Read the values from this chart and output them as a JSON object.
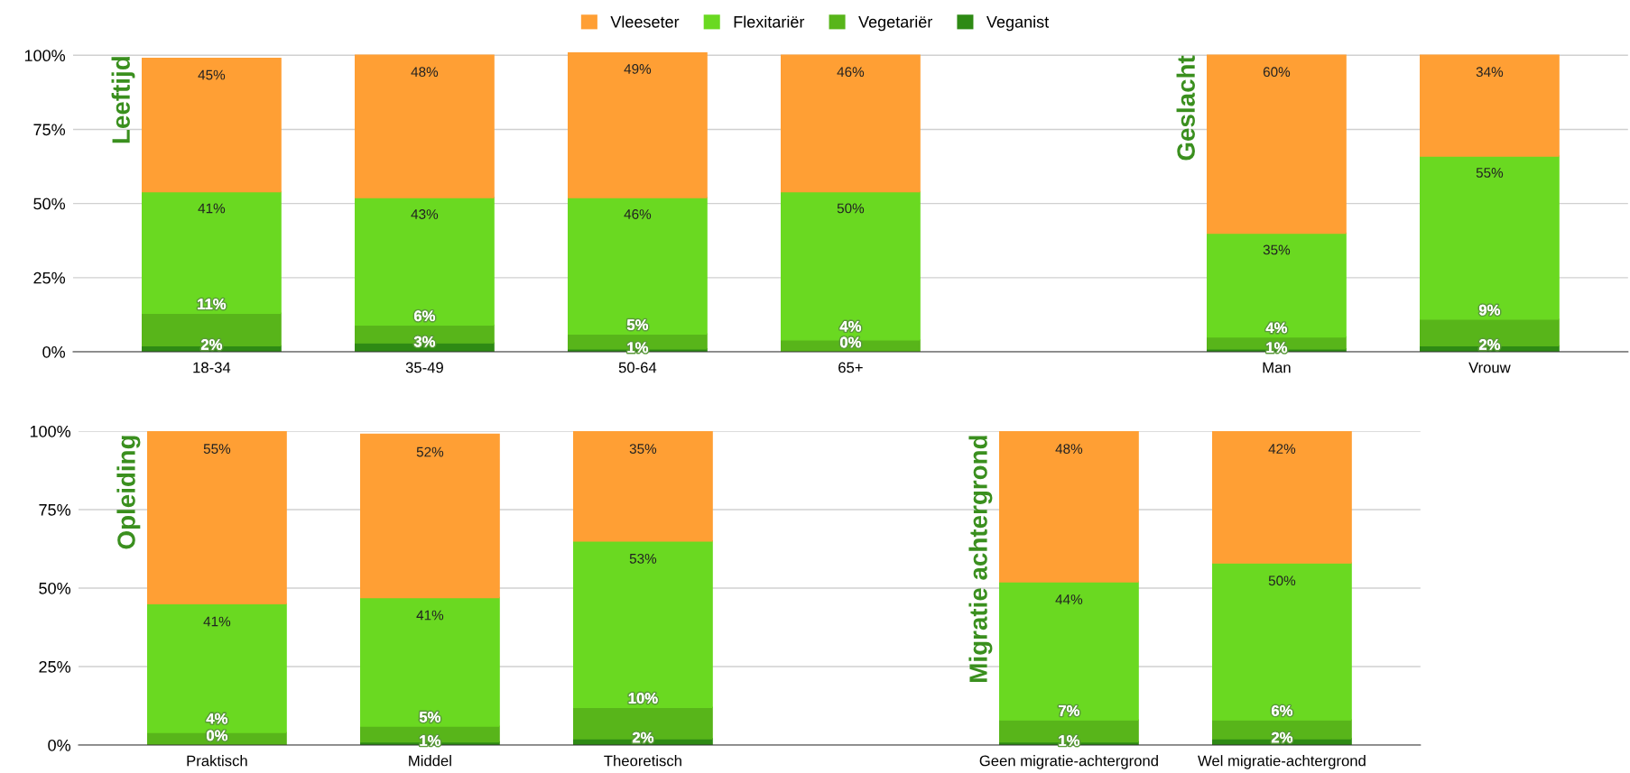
{
  "chart_data": [
    {
      "type": "bar",
      "stacked": true,
      "categories": [
        "18-34",
        "35-49",
        "50-64",
        "65+",
        null,
        "Man",
        "Vrouw"
      ],
      "series": [
        {
          "name": "Veganist",
          "color": "#2e8a14",
          "values": [
            2,
            3,
            1,
            0,
            null,
            1,
            2
          ],
          "value_labels": [
            "2%",
            "3%",
            "1%",
            "0%",
            null,
            "1%",
            "2%"
          ]
        },
        {
          "name": "Vegetariër",
          "color": "#58b51a",
          "values": [
            11,
            6,
            5,
            4,
            null,
            4,
            9
          ],
          "value_labels": [
            "11%",
            "6%",
            "5%",
            "4%",
            null,
            "4%",
            "9%"
          ]
        },
        {
          "name": "Flexitariër",
          "color": "#6ad921",
          "values": [
            41,
            43,
            46,
            50,
            null,
            35,
            55
          ],
          "value_labels": [
            "41%",
            "43%",
            "46%",
            "50%",
            null,
            "35%",
            "55%"
          ]
        },
        {
          "name": "Vleeseter",
          "color": "#ff9f34",
          "values": [
            45,
            48,
            49,
            46,
            null,
            60,
            34
          ],
          "value_labels": [
            "45%",
            "48%",
            "49%",
            "46%",
            null,
            "60%",
            "34%"
          ]
        }
      ],
      "ylim": [
        0,
        101
      ],
      "yticks": [
        {
          "value": 0,
          "label": "0%"
        },
        {
          "value": 25,
          "label": "25%"
        },
        {
          "value": 50,
          "label": "50%"
        },
        {
          "value": 75,
          "label": "75%"
        },
        {
          "value": 100,
          "label": "100%"
        }
      ],
      "grid": "y",
      "legend": "top",
      "annotations": [
        "Leeftijd",
        "Geslacht"
      ]
    },
    {
      "type": "bar",
      "stacked": true,
      "categories": [
        "Praktisch",
        "Middel",
        "Theoretisch",
        null,
        "Geen migratie-achtergrond",
        "Wel migratie-achtergrond"
      ],
      "series": [
        {
          "color": "#2e8a14",
          "values": [
            0,
            1,
            2,
            null,
            1,
            2
          ],
          "value_labels": [
            "0%",
            "1%",
            "2%",
            null,
            "1%",
            "2%"
          ]
        },
        {
          "color": "#58b51a",
          "values": [
            4,
            5,
            10,
            null,
            7,
            6
          ],
          "value_labels": [
            "4%",
            "5%",
            "10%",
            null,
            "7%",
            "6%"
          ]
        },
        {
          "color": "#6ad921",
          "values": [
            41,
            41,
            53,
            null,
            44,
            50
          ],
          "value_labels": [
            "41%",
            "41%",
            "53%",
            null,
            "44%",
            "50%"
          ]
        },
        {
          "color": "#ff9f34",
          "values": [
            55,
            52,
            35,
            null,
            48,
            42
          ],
          "value_labels": [
            "55%",
            "52%",
            "35%",
            null,
            "48%",
            "42%"
          ]
        }
      ],
      "ylim": [
        0,
        100
      ],
      "yticks": [
        {
          "value": 0,
          "label": "0%"
        },
        {
          "value": 25,
          "label": "25%"
        },
        {
          "value": 50,
          "label": "50%"
        },
        {
          "value": 75,
          "label": "75%"
        },
        {
          "value": 100,
          "label": "100%"
        }
      ],
      "grid": "y",
      "annotations": [
        "Opleiding",
        "Migratie achtergrond"
      ]
    }
  ]
}
